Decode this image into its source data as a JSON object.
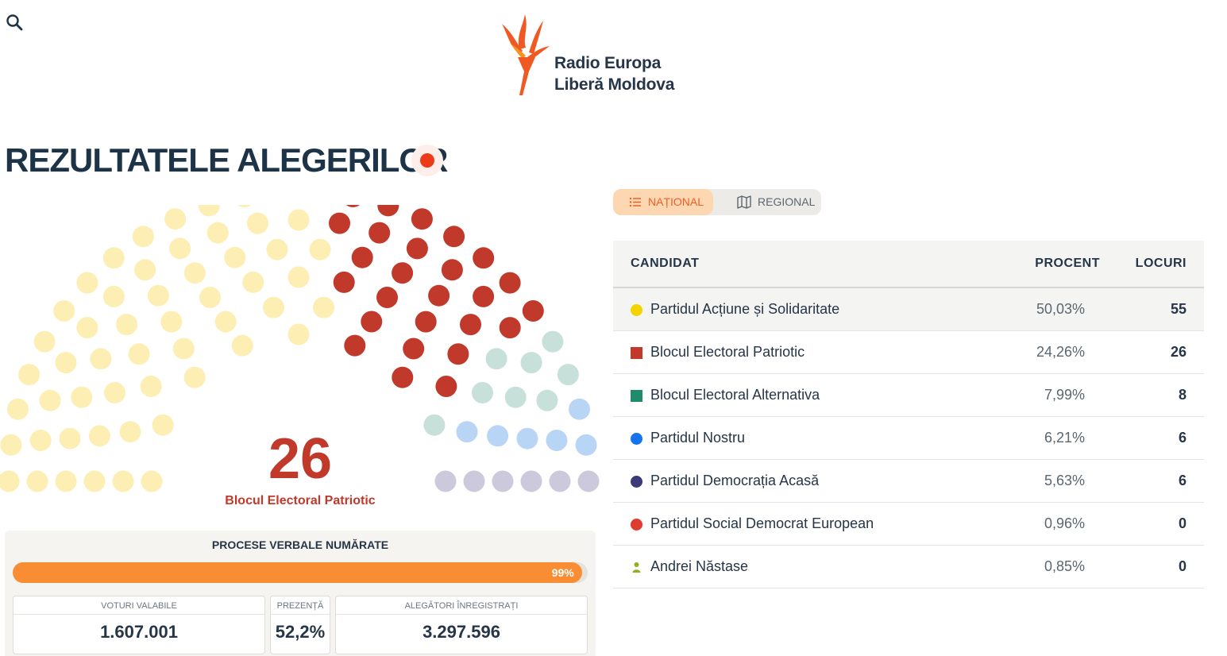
{
  "header": {
    "logo_line1": "Radio Europa",
    "logo_line2": "Liberă Moldova",
    "search_icon": "search-icon",
    "title": "REZULTATELE ALEGERILOR",
    "live_indicator_color": "#ec3b18"
  },
  "hemicycle": {
    "highlight_count": "26",
    "highlight_party": "Blocul Electoral Patriotic",
    "total_seats": 101
  },
  "counted": {
    "title": "PROCESE VERBALE NUMĂRATE",
    "percent": 99,
    "percent_label": "99%",
    "stats": [
      {
        "label": "VOTURI VALABILE",
        "value": "1.607.001"
      },
      {
        "label": "PREZENȚĂ",
        "value": "52,2%"
      },
      {
        "label": "ALEGĂTORI ÎNREGISTRAȚI",
        "value": "3.297.596"
      }
    ]
  },
  "tabs": {
    "national": "NAȚIONAL",
    "regional": "REGIONAL",
    "national_icon": "list-icon",
    "regional_icon": "map-icon"
  },
  "table": {
    "headers": {
      "candidate": "CANDIDAT",
      "percent": "PROCENT",
      "seats": "LOCURI"
    },
    "rows": [
      {
        "name": "Partidul Acțiune și Solidaritate",
        "percent": "50,03%",
        "seats": "55",
        "color": "#f4d400",
        "shape": "circle"
      },
      {
        "name": "Blocul Electoral Patriotic",
        "percent": "24,26%",
        "seats": "26",
        "color": "#c0392b",
        "shape": "square"
      },
      {
        "name": "Blocul Electoral Alternativa",
        "percent": "7,99%",
        "seats": "8",
        "color": "#1f8a6c",
        "shape": "square"
      },
      {
        "name": "Partidul Nostru",
        "percent": "6,21%",
        "seats": "6",
        "color": "#1673ee",
        "shape": "circle"
      },
      {
        "name": "Partidul Democrația Acasă",
        "percent": "5,63%",
        "seats": "6",
        "color": "#3d3a7a",
        "shape": "circle"
      },
      {
        "name": "Partidul Social Democrat European",
        "percent": "0,96%",
        "seats": "0",
        "color": "#de3b32",
        "shape": "circle"
      },
      {
        "name": "Andrei Năstase",
        "percent": "0,85%",
        "seats": "0",
        "color": "#8fb21d",
        "shape": "person"
      }
    ]
  },
  "seat_colors": {
    "pas": "#fdeeb3",
    "bep": "#c0392b",
    "alternativa": "#c8e0da",
    "nostru": "#b9d5f5",
    "acasa": "#cdc9dc"
  }
}
